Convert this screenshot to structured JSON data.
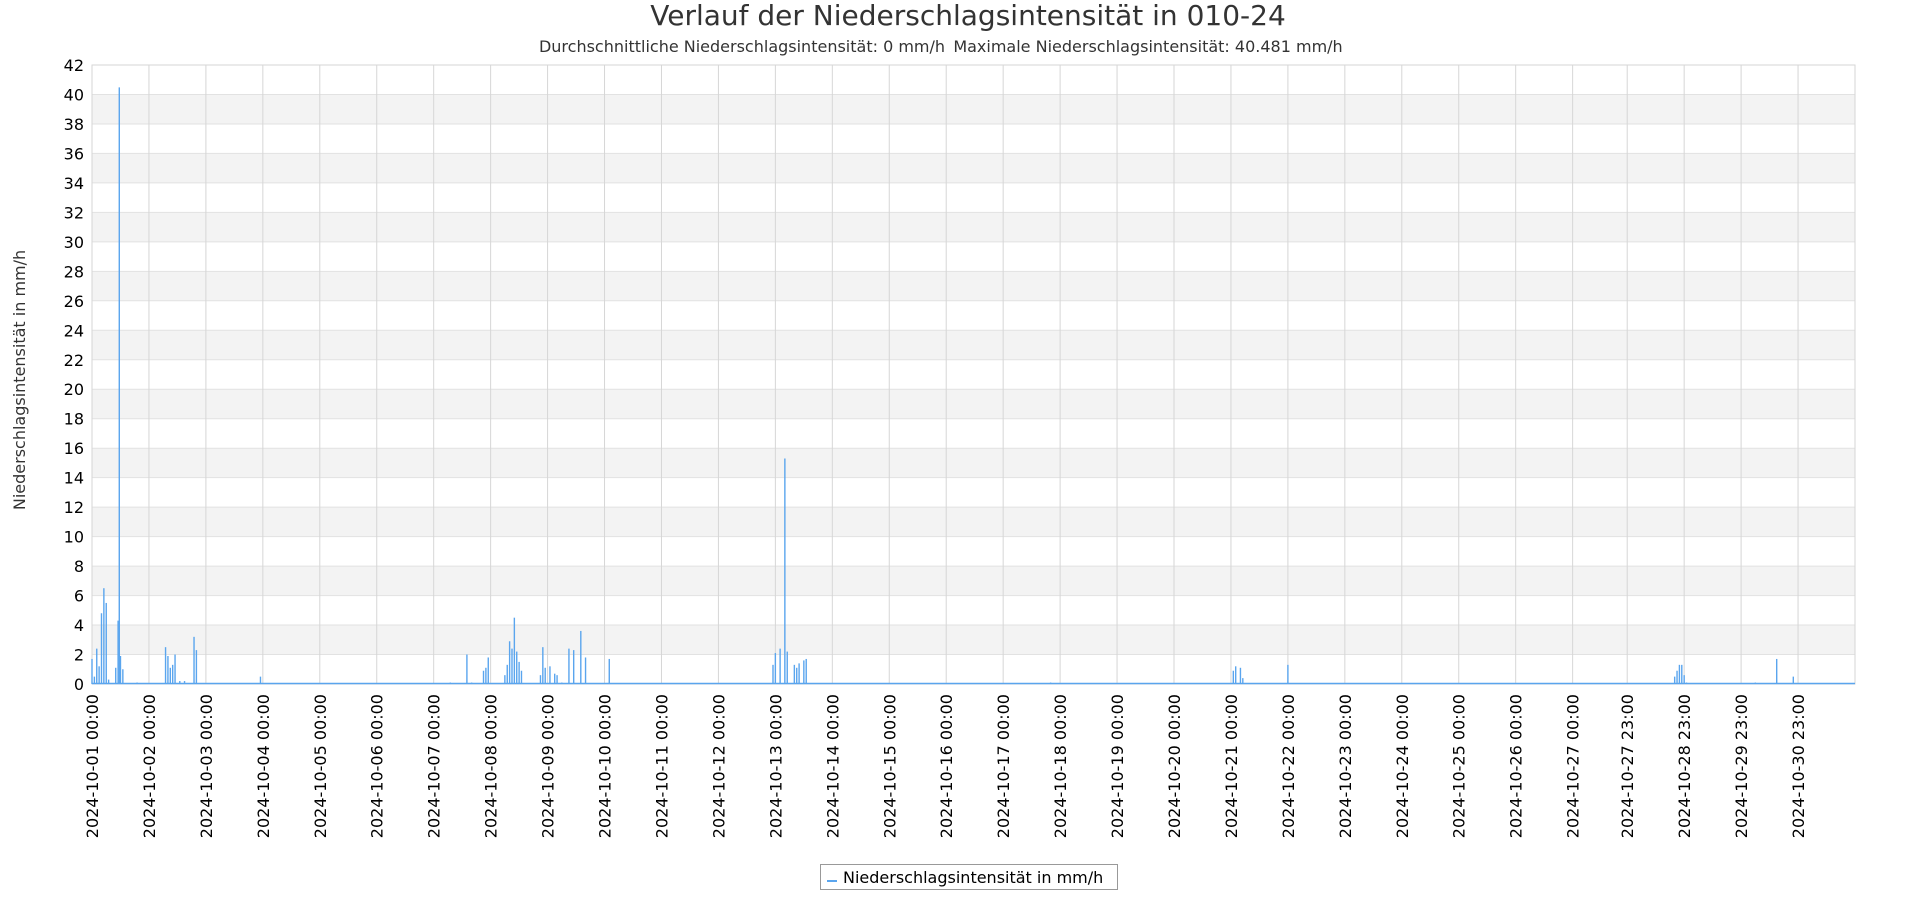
{
  "chart_data": {
    "type": "area",
    "title": "Verlauf der Niederschlagsintensität in 010-24",
    "subtitle_avg": "Durchschnittliche Niederschlagsintensität: 0 mm/h",
    "subtitle_max": "Maximale Niederschlagsintensität: 40.481 mm/h",
    "ylabel": "Niederschlagsintensität in mm/h",
    "xlabel": "",
    "ylim": [
      0,
      42
    ],
    "yticks": [
      0,
      2,
      4,
      6,
      8,
      10,
      12,
      14,
      16,
      18,
      20,
      22,
      24,
      26,
      28,
      30,
      32,
      34,
      36,
      38,
      40,
      42
    ],
    "x_start": "2024-10-01 00:00",
    "x_end": "2024-10-31 23:00",
    "xtick_labels": [
      "2024-10-01 00:00",
      "2024-10-02 00:00",
      "2024-10-03 00:00",
      "2024-10-04 00:00",
      "2024-10-05 00:00",
      "2024-10-06 00:00",
      "2024-10-07 00:00",
      "2024-10-08 00:00",
      "2024-10-09 00:00",
      "2024-10-10 00:00",
      "2024-10-11 00:00",
      "2024-10-12 00:00",
      "2024-10-13 00:00",
      "2024-10-14 00:00",
      "2024-10-15 00:00",
      "2024-10-16 00:00",
      "2024-10-17 00:00",
      "2024-10-18 00:00",
      "2024-10-19 00:00",
      "2024-10-20 00:00",
      "2024-10-21 00:00",
      "2024-10-22 00:00",
      "2024-10-23 00:00",
      "2024-10-24 00:00",
      "2024-10-25 00:00",
      "2024-10-26 00:00",
      "2024-10-27 00:00",
      "2024-10-27 23:00",
      "2024-10-28 23:00",
      "2024-10-29 23:00",
      "2024-10-30 23:00"
    ],
    "grid": true,
    "legend_position": "bottom-center",
    "series": [
      {
        "name": "Niederschlagsintensität in mm/h",
        "color": "#5aa5ee",
        "points": [
          [
            "2024-10-01 00:00",
            1.7
          ],
          [
            "2024-10-01 01:00",
            0.5
          ],
          [
            "2024-10-01 02:00",
            2.4
          ],
          [
            "2024-10-01 03:00",
            1.2
          ],
          [
            "2024-10-01 04:00",
            4.8
          ],
          [
            "2024-10-01 05:00",
            6.5
          ],
          [
            "2024-10-01 06:00",
            5.5
          ],
          [
            "2024-10-01 07:00",
            0.3
          ],
          [
            "2024-10-01 10:00",
            1.1
          ],
          [
            "2024-10-01 11:00",
            4.3
          ],
          [
            "2024-10-01 11:30",
            40.481
          ],
          [
            "2024-10-01 12:00",
            1.9
          ],
          [
            "2024-10-01 13:00",
            1.0
          ],
          [
            "2024-10-01 19:00",
            0.1
          ],
          [
            "2024-10-02 07:00",
            2.5
          ],
          [
            "2024-10-02 08:00",
            1.9
          ],
          [
            "2024-10-02 09:00",
            1.1
          ],
          [
            "2024-10-02 10:00",
            1.3
          ],
          [
            "2024-10-02 11:00",
            2.0
          ],
          [
            "2024-10-02 13:00",
            0.2
          ],
          [
            "2024-10-02 15:00",
            0.2
          ],
          [
            "2024-10-02 19:00",
            3.2
          ],
          [
            "2024-10-02 20:00",
            2.3
          ],
          [
            "2024-10-03 23:00",
            0.5
          ],
          [
            "2024-10-07 07:00",
            0.1
          ],
          [
            "2024-10-07 14:00",
            2.0
          ],
          [
            "2024-10-07 16:00",
            0.1
          ],
          [
            "2024-10-07 21:00",
            0.9
          ],
          [
            "2024-10-07 22:00",
            1.1
          ],
          [
            "2024-10-07 23:00",
            1.8
          ],
          [
            "2024-10-08 06:00",
            0.6
          ],
          [
            "2024-10-08 07:00",
            1.3
          ],
          [
            "2024-10-08 08:00",
            2.9
          ],
          [
            "2024-10-08 09:00",
            2.4
          ],
          [
            "2024-10-08 10:00",
            4.5
          ],
          [
            "2024-10-08 11:00",
            2.2
          ],
          [
            "2024-10-08 12:00",
            1.5
          ],
          [
            "2024-10-08 13:00",
            0.9
          ],
          [
            "2024-10-08 21:00",
            0.6
          ],
          [
            "2024-10-08 22:00",
            2.5
          ],
          [
            "2024-10-08 23:00",
            1.1
          ],
          [
            "2024-10-09 01:00",
            1.2
          ],
          [
            "2024-10-09 03:00",
            0.7
          ],
          [
            "2024-10-09 04:00",
            0.6
          ],
          [
            "2024-10-09 06:00",
            0.1
          ],
          [
            "2024-10-09 09:00",
            2.4
          ],
          [
            "2024-10-09 11:00",
            2.3
          ],
          [
            "2024-10-09 14:00",
            3.6
          ],
          [
            "2024-10-09 16:00",
            1.8
          ],
          [
            "2024-10-10 02:00",
            1.7
          ],
          [
            "2024-10-12 23:00",
            1.3
          ],
          [
            "2024-10-13 00:00",
            2.1
          ],
          [
            "2024-10-13 02:00",
            2.4
          ],
          [
            "2024-10-13 04:00",
            15.3
          ],
          [
            "2024-10-13 05:00",
            2.2
          ],
          [
            "2024-10-13 08:00",
            1.3
          ],
          [
            "2024-10-13 09:00",
            1.1
          ],
          [
            "2024-10-13 10:00",
            1.4
          ],
          [
            "2024-10-13 12:00",
            1.6
          ],
          [
            "2024-10-13 13:00",
            1.7
          ],
          [
            "2024-10-17 20:00",
            0.1
          ],
          [
            "2024-10-21 01:00",
            0.9
          ],
          [
            "2024-10-21 02:00",
            1.2
          ],
          [
            "2024-10-21 04:00",
            1.1
          ],
          [
            "2024-10-21 05:00",
            0.4
          ],
          [
            "2024-10-22 00:00",
            1.3
          ],
          [
            "2024-10-28 19:00",
            0.5
          ],
          [
            "2024-10-28 20:00",
            0.9
          ],
          [
            "2024-10-28 21:00",
            1.3
          ],
          [
            "2024-10-28 22:00",
            1.3
          ],
          [
            "2024-10-28 23:00",
            0.6
          ],
          [
            "2024-10-29 00:00",
            0.1
          ],
          [
            "2024-10-30 05:00",
            0.1
          ],
          [
            "2024-10-30 14:00",
            1.7
          ],
          [
            "2024-10-30 21:00",
            0.5
          ]
        ]
      }
    ]
  }
}
